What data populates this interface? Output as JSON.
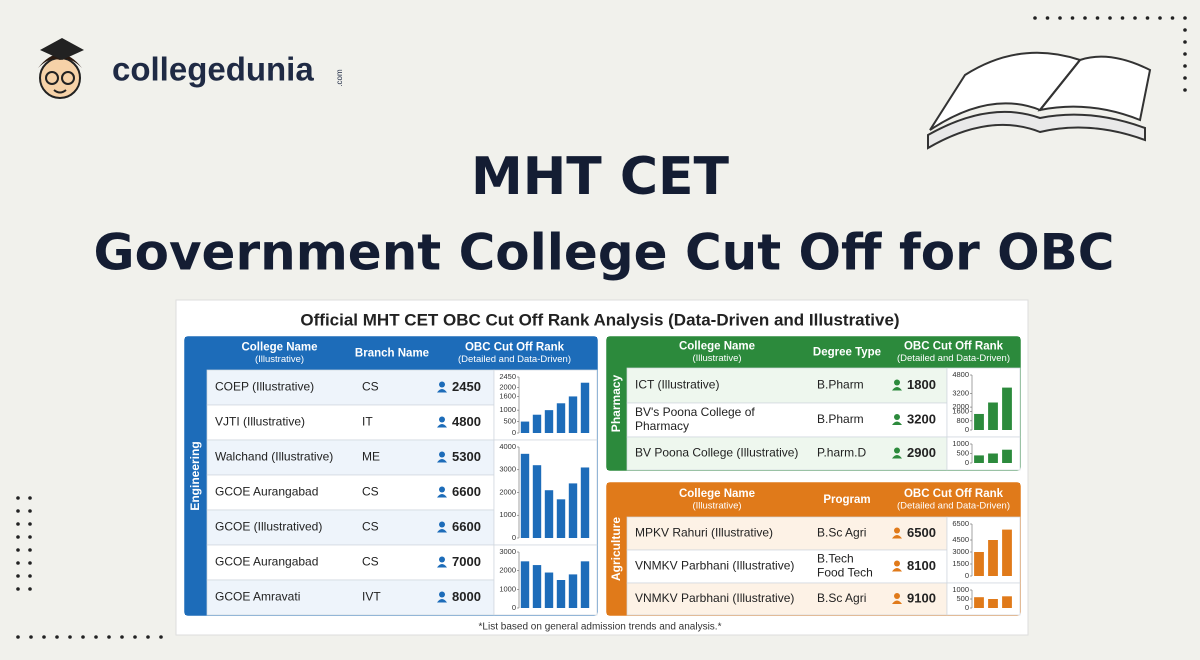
{
  "logo": {
    "name": "collegedunia",
    "suffix": ".com"
  },
  "title": {
    "line1": "MHT CET",
    "line2": "Government College Cut Off for OBC"
  },
  "panel": {
    "title": "Official MHT CET OBC Cut Off Rank Analysis (Data-Driven and Illustrative)",
    "footnote": "*List based on general admission trends and analysis.*"
  },
  "sections": [
    {
      "label": "Engineering",
      "color": "#1d6cb9",
      "tint": "#eef4fb",
      "headers": [
        [
          "College Name",
          "(Illustrative)"
        ],
        [
          "Branch Name"
        ],
        [
          "OBC Cut Off Rank",
          "(Detailed and Data-Driven)"
        ]
      ],
      "rows": [
        [
          "COEP (Illustrative)",
          "CS",
          2450
        ],
        [
          "VJTI (Illustrative)",
          "IT",
          4800
        ],
        [
          "Walchand (Illustrative)",
          "ME",
          5300
        ],
        [
          "GCOE Aurangabad",
          "CS",
          6600
        ],
        [
          "GCOE (Illustratived)",
          "CS",
          6600
        ],
        [
          "GCOE Aurangabad",
          "CS",
          7000
        ],
        [
          "GCOE Amravati",
          "IVT",
          8000
        ]
      ],
      "charts": [
        {
          "ylim": [
            0,
            2450
          ],
          "yticks": [
            0,
            500,
            1000,
            1600,
            2000,
            2450
          ],
          "values": [
            500,
            800,
            1000,
            1300,
            1600,
            2200
          ]
        },
        {
          "ylim": [
            0,
            4000
          ],
          "yticks": [
            0,
            1000,
            2000,
            3000,
            4000
          ],
          "values": [
            3700,
            3200,
            2100,
            1700,
            2400,
            3100
          ]
        },
        {
          "ylim": [
            0,
            3000
          ],
          "yticks": [
            0,
            1000,
            2000,
            3000
          ],
          "values": [
            2500,
            2300,
            1900,
            1500,
            1800,
            2500
          ]
        }
      ]
    },
    {
      "label": "Pharmacy",
      "color": "#2c8a3c",
      "tint": "#eef7ee",
      "headers": [
        [
          "College Name",
          "(Illustrative)"
        ],
        [
          "Degree Type"
        ],
        [
          "OBC Cut Off Rank",
          "(Detailed and Data-Driven)"
        ]
      ],
      "rows": [
        [
          "ICT (Illustrative)",
          "B.Pharm",
          1800
        ],
        [
          [
            "BV's Poona College of",
            "Pharmacy"
          ],
          "B.Pharm",
          3200
        ],
        [
          "BV Poona College (Illustrative)",
          "P.harm.D",
          2900
        ]
      ],
      "charts": [
        {
          "ylim": [
            0,
            4800
          ],
          "yticks": [
            0,
            800,
            1600,
            2000,
            3200,
            4800
          ],
          "values": [
            1400,
            2400,
            3700
          ]
        },
        {
          "ylim": [
            0,
            1000
          ],
          "yticks": [
            0,
            500,
            1000
          ],
          "values": [
            400,
            500,
            700
          ]
        }
      ]
    },
    {
      "label": "Agriculture",
      "color": "#e07a1a",
      "tint": "#fdf2e6",
      "headers": [
        [
          "College Name",
          "(Illustrative)"
        ],
        [
          "Program"
        ],
        [
          "OBC Cut Off Rank",
          "(Detailed and Data-Driven)"
        ]
      ],
      "rows": [
        [
          "MPKV Rahuri (Illustrative)",
          "B.Sc Agri",
          6500
        ],
        [
          "VNMKV Parbhani (Illustrative)",
          [
            "B.Tech",
            "Food Tech"
          ],
          8100
        ],
        [
          "VNMKV Parbhani (Illustrative)",
          "B.Sc Agri",
          9100
        ]
      ],
      "charts": [
        {
          "ylim": [
            0,
            6500
          ],
          "yticks": [
            0,
            1500,
            3000,
            4500,
            6500
          ],
          "values": [
            3000,
            4500,
            5800
          ]
        },
        {
          "ylim": [
            0,
            1000
          ],
          "yticks": [
            0,
            500,
            1000
          ],
          "values": [
            600,
            500,
            650
          ]
        }
      ]
    }
  ]
}
